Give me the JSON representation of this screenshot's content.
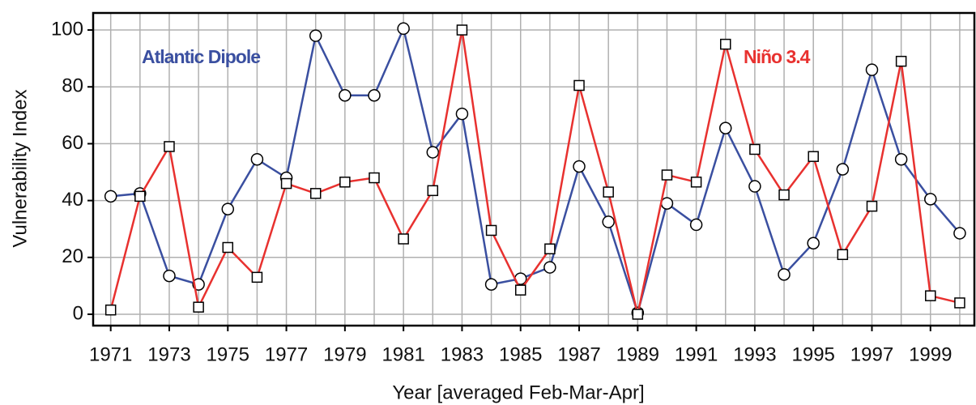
{
  "chart_data": {
    "type": "line",
    "x": [
      1971,
      1972,
      1973,
      1974,
      1975,
      1976,
      1977,
      1978,
      1979,
      1980,
      1981,
      1982,
      1983,
      1984,
      1985,
      1986,
      1987,
      1988,
      1989,
      1990,
      1991,
      1992,
      1993,
      1994,
      1995,
      1996,
      1997,
      1998,
      1999,
      2000
    ],
    "series": [
      {
        "name": "Atlantic Dipole",
        "color": "#3a4fa0",
        "marker": "circle",
        "values": [
          41.5,
          42.5,
          13.5,
          10.5,
          37,
          54.5,
          48,
          98,
          77,
          77,
          100.5,
          57,
          70.5,
          10.5,
          12.5,
          16.5,
          52,
          32.5,
          0.5,
          39,
          31.5,
          65.5,
          45,
          14,
          25,
          51,
          86,
          54.5,
          40.5,
          28.5
        ]
      },
      {
        "name": "Niño 3.4",
        "color": "#e8312f",
        "marker": "square",
        "values": [
          1.5,
          41.5,
          59,
          2.5,
          23.5,
          13,
          46,
          42.5,
          46.5,
          48,
          26.5,
          43.5,
          100,
          29.5,
          8.5,
          23,
          80.5,
          43,
          0,
          49,
          46.5,
          95,
          58,
          42,
          55.5,
          21,
          38,
          89,
          6.5,
          4
        ]
      }
    ],
    "xlabel": "Year [averaged Feb-Mar-Apr]",
    "ylabel": "Vulnerability Index",
    "xlim": [
      1970.4,
      2000.5
    ],
    "ylim": [
      -4,
      106
    ],
    "xticks": [
      1971,
      1973,
      1975,
      1977,
      1979,
      1981,
      1983,
      1985,
      1987,
      1989,
      1991,
      1993,
      1995,
      1997,
      1999
    ],
    "xminorticks": [
      1972,
      1974,
      1976,
      1978,
      1980,
      1982,
      1984,
      1986,
      1988,
      1990,
      1992,
      1994,
      1996,
      1998,
      2000
    ],
    "yticks": [
      0,
      20,
      40,
      60,
      80,
      100
    ],
    "grid": true
  }
}
